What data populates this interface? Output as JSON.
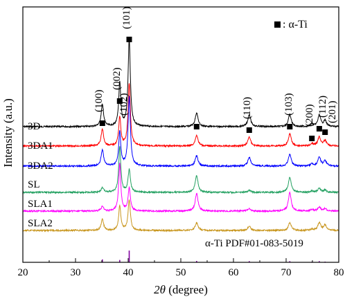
{
  "chart_data": {
    "type": "line",
    "xlabel_italic": "2θ",
    "xlabel_rest": " (degree)",
    "ylabel": "Intensity (a.u.)",
    "xlim": [
      20,
      80
    ],
    "x_ticks": [
      "20",
      "30",
      "40",
      "50",
      "60",
      "70",
      "80"
    ],
    "legend_marker_label": ": α-Ti",
    "reference_label": "α-Ti PDF#01-083-5019",
    "grid": false,
    "series": [
      {
        "name": "3D",
        "color": "#000000",
        "peaks": [
          [
            35.1,
            0.25
          ],
          [
            38.4,
            0.5
          ],
          [
            40.2,
            1.0
          ],
          [
            53.0,
            0.16
          ],
          [
            63.0,
            0.14
          ],
          [
            70.7,
            0.14
          ],
          [
            74.9,
            0.03
          ],
          [
            76.3,
            0.13
          ],
          [
            77.4,
            0.07
          ]
        ]
      },
      {
        "name": "3DA1",
        "color": "#ff0000",
        "peaks": [
          [
            35.1,
            0.22
          ],
          [
            38.4,
            0.38
          ],
          [
            40.2,
            0.82
          ],
          [
            53.0,
            0.14
          ],
          [
            63.0,
            0.12
          ],
          [
            70.7,
            0.16
          ],
          [
            74.9,
            0.03
          ],
          [
            76.3,
            0.12
          ],
          [
            77.4,
            0.07
          ]
        ]
      },
      {
        "name": "3DA2",
        "color": "#0000ff",
        "peaks": [
          [
            35.1,
            0.22
          ],
          [
            38.4,
            0.45
          ],
          [
            40.2,
            0.92
          ],
          [
            53.0,
            0.14
          ],
          [
            63.0,
            0.12
          ],
          [
            70.7,
            0.16
          ],
          [
            74.9,
            0.03
          ],
          [
            76.3,
            0.12
          ],
          [
            77.4,
            0.07
          ]
        ]
      },
      {
        "name": "SL",
        "color": "#22a060",
        "peaks": [
          [
            35.1,
            0.06
          ],
          [
            38.4,
            0.6
          ],
          [
            40.2,
            0.3
          ],
          [
            53.0,
            0.22
          ],
          [
            63.0,
            0.03
          ],
          [
            70.7,
            0.2
          ],
          [
            74.9,
            0.02
          ],
          [
            76.3,
            0.05
          ],
          [
            77.4,
            0.03
          ]
        ]
      },
      {
        "name": "SLA1",
        "color": "#ff00ff",
        "peaks": [
          [
            35.1,
            0.06
          ],
          [
            38.4,
            0.62
          ],
          [
            40.2,
            0.3
          ],
          [
            53.0,
            0.23
          ],
          [
            63.0,
            0.03
          ],
          [
            70.7,
            0.24
          ],
          [
            74.9,
            0.02
          ],
          [
            76.3,
            0.05
          ],
          [
            77.4,
            0.03
          ]
        ]
      },
      {
        "name": "SLA2",
        "color": "#c8961e",
        "peaks": [
          [
            35.1,
            0.2
          ],
          [
            38.4,
            0.45
          ],
          [
            40.2,
            0.55
          ],
          [
            53.0,
            0.14
          ],
          [
            63.0,
            0.08
          ],
          [
            70.7,
            0.14
          ],
          [
            74.9,
            0.02
          ],
          [
            76.3,
            0.14
          ],
          [
            77.4,
            0.1
          ]
        ]
      }
    ],
    "peak_labels": [
      {
        "x": 35.1,
        "label": "(100)"
      },
      {
        "x": 38.4,
        "label": "(002)"
      },
      {
        "x": 40.2,
        "label": "(101)"
      },
      {
        "x": 53.0,
        "label": "(102)"
      },
      {
        "x": 63.0,
        "label": "(110)"
      },
      {
        "x": 70.7,
        "label": "(103)"
      },
      {
        "x": 74.9,
        "label": "(200)"
      },
      {
        "x": 76.3,
        "label": "(112)"
      },
      {
        "x": 77.4,
        "label": "(201)"
      }
    ],
    "reference_lines": [
      {
        "x": 35.1,
        "intensity": 0.25
      },
      {
        "x": 38.4,
        "intensity": 0.2
      },
      {
        "x": 40.2,
        "intensity": 1.0
      },
      {
        "x": 53.0,
        "intensity": 0.12
      },
      {
        "x": 63.0,
        "intensity": 0.1
      },
      {
        "x": 70.7,
        "intensity": 0.1
      },
      {
        "x": 74.9,
        "intensity": 0.05
      },
      {
        "x": 76.3,
        "intensity": 0.1
      },
      {
        "x": 77.4,
        "intensity": 0.06
      }
    ],
    "peak_marker_color": "#000000"
  }
}
